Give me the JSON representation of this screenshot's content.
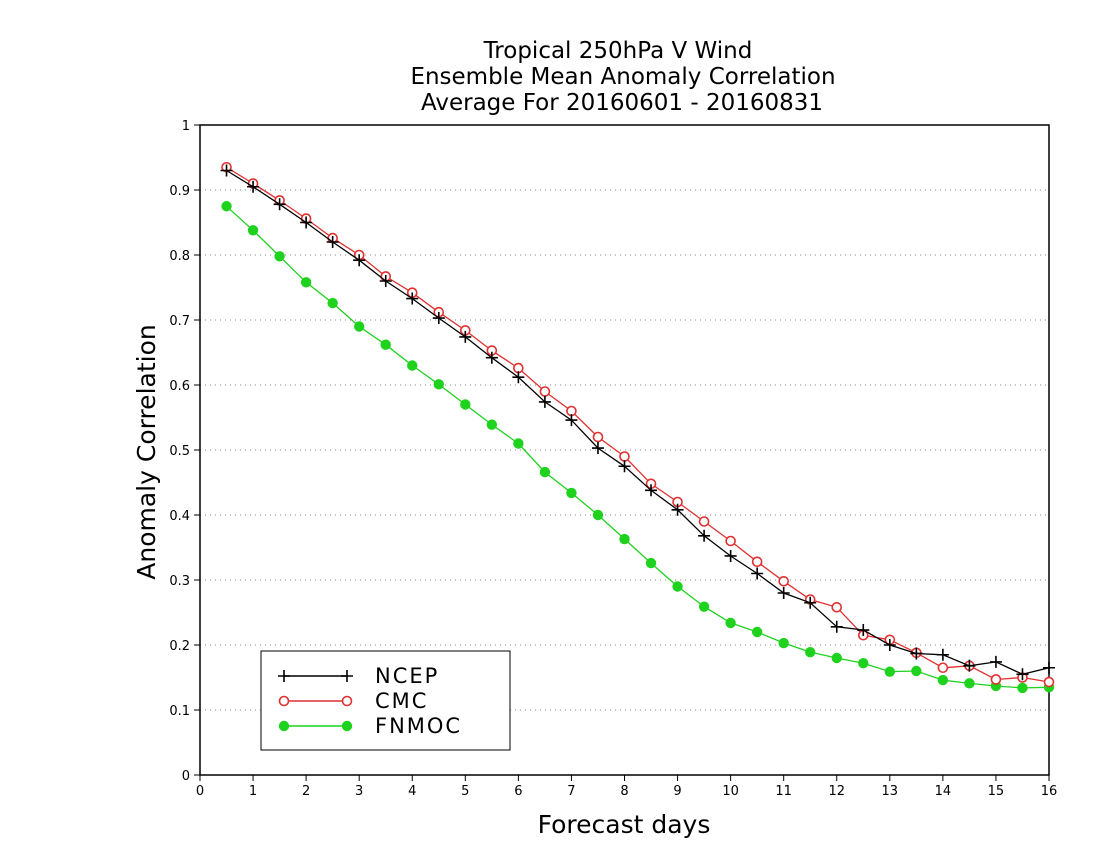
{
  "chart_data": {
    "type": "line",
    "title_lines": [
      "Tropical 250hPa V Wind",
      "Ensemble Mean Anomaly Correlation",
      "Average For 20160601 - 20160831"
    ],
    "xlabel": "Forecast days",
    "ylabel": "Anomaly Correlation",
    "xlim": [
      0,
      16
    ],
    "ylim": [
      0,
      1
    ],
    "xticks": [
      "0",
      "1",
      "2",
      "3",
      "4",
      "5",
      "6",
      "7",
      "8",
      "9",
      "10",
      "11",
      "12",
      "13",
      "14",
      "15",
      "16"
    ],
    "yticks": [
      "0",
      "0.1",
      "0.2",
      "0.3",
      "0.4",
      "0.5",
      "0.6",
      "0.7",
      "0.8",
      "0.9",
      "1"
    ],
    "grid": "dotted horizontal",
    "legend_position": "bottom-left",
    "x": [
      0.5,
      1,
      1.5,
      2,
      2.5,
      3,
      3.5,
      4,
      4.5,
      5,
      5.5,
      6,
      6.5,
      7,
      7.5,
      8,
      8.5,
      9,
      9.5,
      10,
      10.5,
      11,
      11.5,
      12,
      12.5,
      13,
      13.5,
      14,
      14.5,
      15,
      15.5,
      16
    ],
    "series": [
      {
        "name": "NCEP",
        "color": "#000000",
        "marker": "plus",
        "values": [
          0.93,
          0.905,
          0.878,
          0.85,
          0.82,
          0.792,
          0.76,
          0.733,
          0.703,
          0.674,
          0.642,
          0.612,
          0.574,
          0.546,
          0.503,
          0.475,
          0.438,
          0.408,
          0.368,
          0.337,
          0.31,
          0.28,
          0.265,
          0.228,
          0.223,
          0.2,
          0.187,
          0.185,
          0.168,
          0.174,
          0.155,
          0.165
        ]
      },
      {
        "name": "CMC",
        "color": "#e03030",
        "marker": "open-circle",
        "values": [
          0.935,
          0.91,
          0.884,
          0.856,
          0.826,
          0.8,
          0.767,
          0.742,
          0.712,
          0.684,
          0.653,
          0.626,
          0.59,
          0.56,
          0.52,
          0.49,
          0.448,
          0.42,
          0.39,
          0.36,
          0.328,
          0.298,
          0.27,
          0.258,
          0.215,
          0.208,
          0.188,
          0.165,
          0.168,
          0.147,
          0.15,
          0.143
        ]
      },
      {
        "name": "FNMOC",
        "color": "#1ed21e",
        "marker": "filled-circle",
        "values": [
          0.875,
          0.838,
          0.798,
          0.758,
          0.726,
          0.69,
          0.662,
          0.63,
          0.601,
          0.57,
          0.539,
          0.51,
          0.466,
          0.434,
          0.4,
          0.363,
          0.326,
          0.29,
          0.259,
          0.234,
          0.22,
          0.203,
          0.189,
          0.18,
          0.172,
          0.159,
          0.16,
          0.146,
          0.141,
          0.137,
          0.134,
          0.135
        ]
      }
    ]
  }
}
